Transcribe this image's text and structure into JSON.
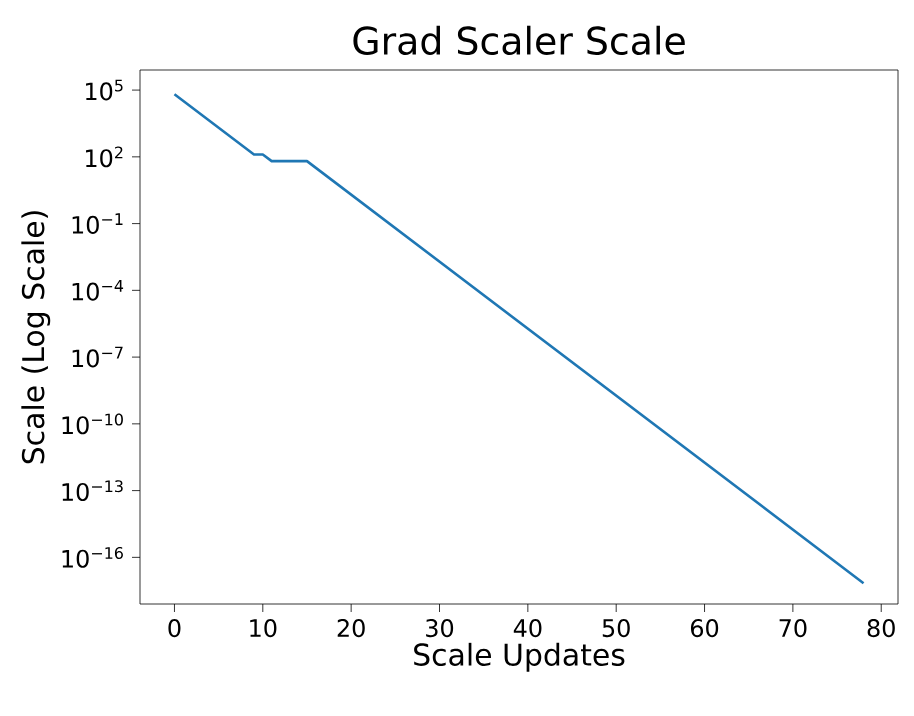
{
  "chart_data": {
    "type": "line",
    "title": "Grad Scaler Scale",
    "xlabel": "Scale Updates",
    "ylabel": "Scale (Log Scale)",
    "x": [
      0,
      9,
      10,
      11,
      15,
      78
    ],
    "series": [
      {
        "color": "#1f77b4",
        "values": [
          65536,
          128,
          128,
          64,
          64,
          6.9e-18
        ]
      }
    ],
    "log": "y",
    "grid": false,
    "marker": "none",
    "line_style": "solid",
    "xlim": [
      -3.9,
      81.9
    ],
    "xticks": [
      0,
      10,
      20,
      30,
      40,
      50,
      60,
      70,
      80
    ],
    "ylim": [
      8e-19,
      800000.0
    ],
    "yticks": [
      {
        "value": 100000.0,
        "label": "10$^{5}$"
      },
      {
        "value": 100.0,
        "label": "10$^{2}$"
      },
      {
        "value": 0.1,
        "label": "10$^{−1}$"
      },
      {
        "value": 0.0001,
        "label": "10$^{−4}$"
      },
      {
        "value": 1e-07,
        "label": "10$^{−7}$"
      },
      {
        "value": 1e-10,
        "label": "10$^{−10}$"
      },
      {
        "value": 1e-13,
        "label": "10$^{−13}$"
      },
      {
        "value": 1e-16,
        "label": "10$^{−16}$"
      }
    ]
  }
}
